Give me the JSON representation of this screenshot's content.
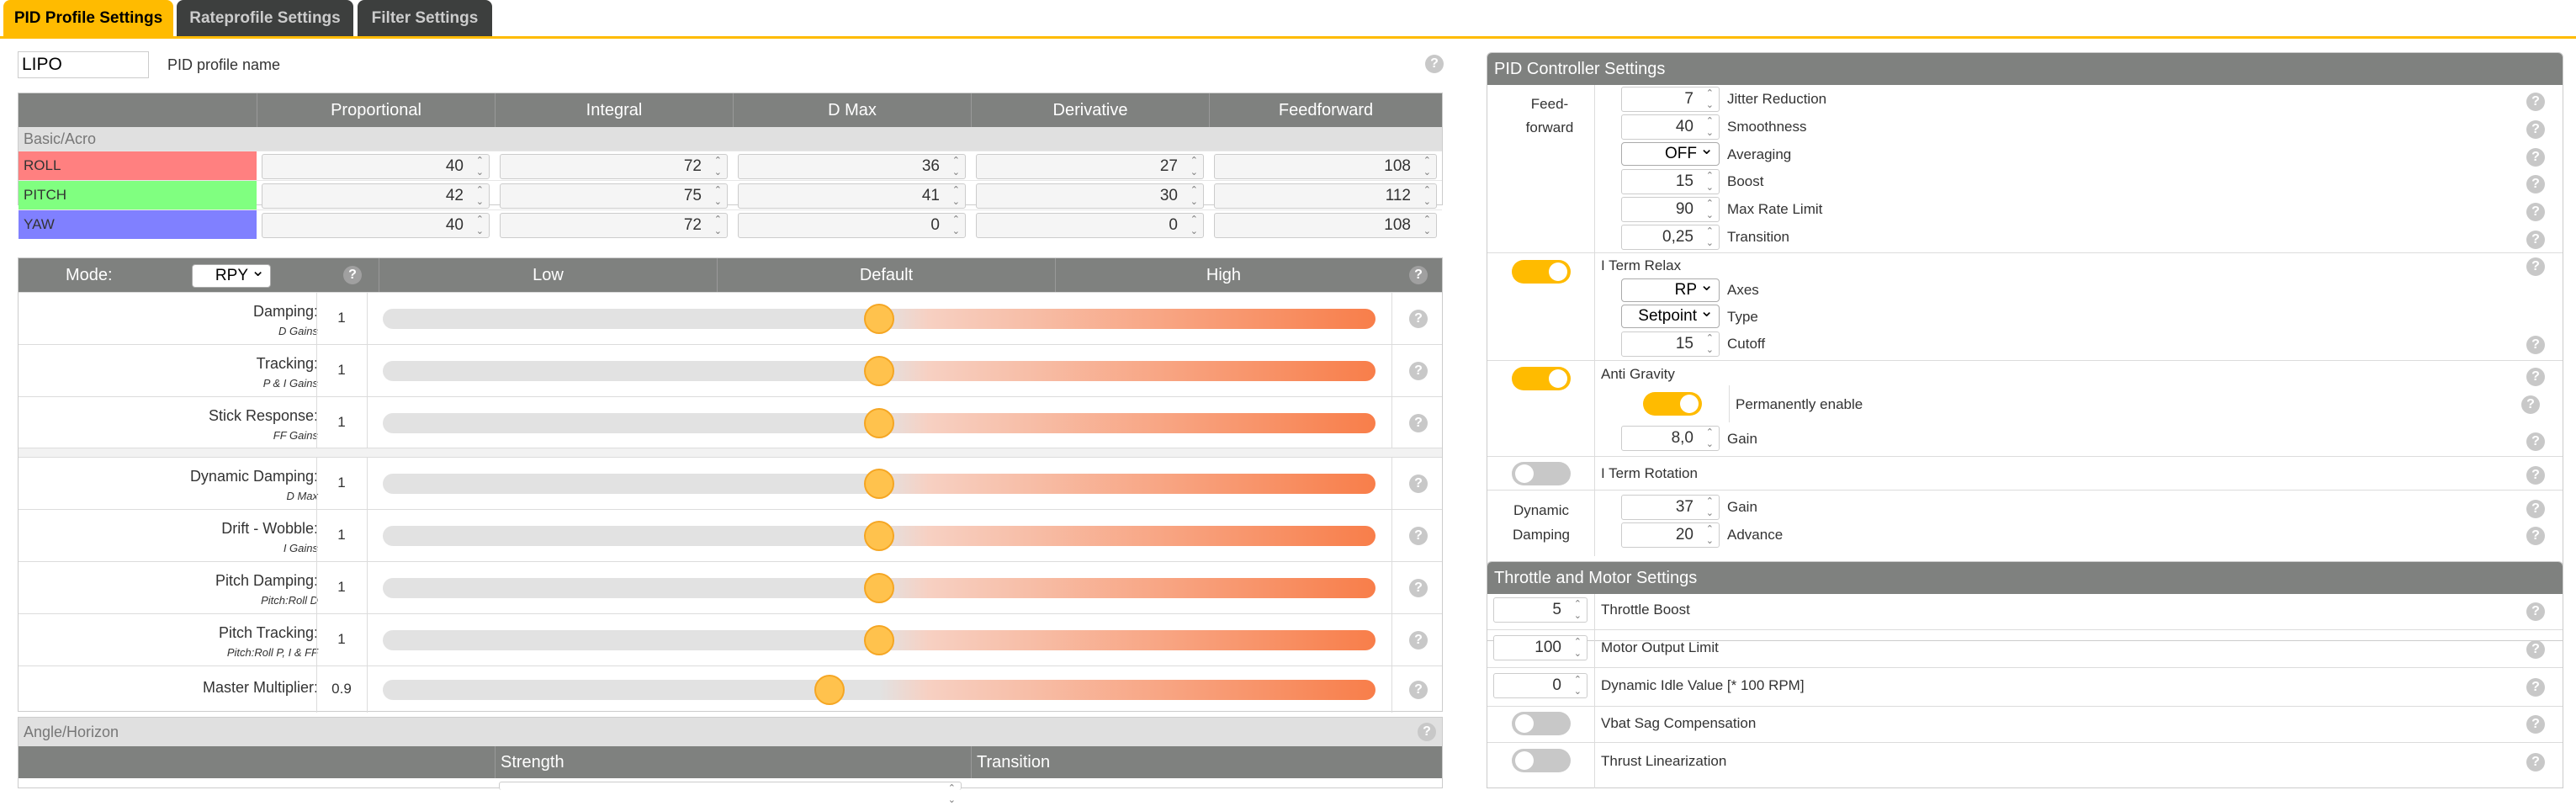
{
  "tabs": [
    "PID Profile Settings",
    "Rateprofile Settings",
    "Filter Settings"
  ],
  "profile": {
    "name_value": "LIPO",
    "name_label": "PID profile name"
  },
  "pid_table": {
    "columns": [
      "Proportional",
      "Integral",
      "D Max",
      "Derivative",
      "Feedforward"
    ],
    "section": "Basic/Acro",
    "rows": [
      {
        "axis": "ROLL",
        "color": "#ff8080",
        "values": [
          "40",
          "72",
          "36",
          "27",
          "108"
        ]
      },
      {
        "axis": "PITCH",
        "color": "#80ff80",
        "values": [
          "42",
          "75",
          "41",
          "30",
          "112"
        ]
      },
      {
        "axis": "YAW",
        "color": "#8080ff",
        "values": [
          "40",
          "72",
          "0",
          "0",
          "108"
        ]
      }
    ]
  },
  "sliders": {
    "mode_label": "Mode:",
    "mode_value": "RPY",
    "scale": [
      "Low",
      "Default",
      "High"
    ],
    "items": [
      {
        "label": "Damping:",
        "sub": "D Gains",
        "value": "1",
        "pos": 0.5
      },
      {
        "label": "Tracking:",
        "sub": "P & I Gains",
        "value": "1",
        "pos": 0.5
      },
      {
        "label": "Stick Response:",
        "sub": "FF Gains",
        "value": "1",
        "pos": 0.5
      },
      {
        "label": "Dynamic Damping:",
        "sub": "D Max",
        "value": "1",
        "pos": 0.5
      },
      {
        "label": "Drift - Wobble:",
        "sub": "I Gains",
        "value": "1",
        "pos": 0.5
      },
      {
        "label": "Pitch Damping:",
        "sub": "Pitch:Roll D",
        "value": "1",
        "pos": 0.5
      },
      {
        "label": "Pitch Tracking:",
        "sub": "Pitch:Roll P, I & FF",
        "value": "1",
        "pos": 0.5
      },
      {
        "label": "Master Multiplier:",
        "sub": "",
        "value": "0.9",
        "pos": 0.45
      }
    ]
  },
  "angle": {
    "section": "Angle/Horizon",
    "columns": [
      "Strength",
      "Transition"
    ]
  },
  "controller": {
    "title": "PID Controller Settings",
    "feedforward_label": "Feed-\nforward",
    "feedforward": [
      {
        "value": "7",
        "label": "Jitter Reduction"
      },
      {
        "value": "40",
        "label": "Smoothness"
      },
      {
        "value": "OFF",
        "label": "Averaging"
      },
      {
        "value": "15",
        "label": "Boost"
      },
      {
        "value": "90",
        "label": "Max Rate Limit"
      },
      {
        "value": "0,25",
        "label": "Transition"
      }
    ],
    "iterm_relax": {
      "label": "I Term Relax",
      "axes_value": "RP",
      "axes_label": "Axes",
      "type_value": "Setpoint",
      "type_label": "Type",
      "cutoff_value": "15",
      "cutoff_label": "Cutoff"
    },
    "anti_gravity": {
      "label": "Anti Gravity",
      "perm_label": "Permanently enable",
      "gain_value": "8,0",
      "gain_label": "Gain"
    },
    "iterm_rotation": {
      "label": "I Term Rotation"
    },
    "dyn_damping": {
      "label": "Dynamic\nDamping",
      "gain_value": "37",
      "gain_label": "Gain",
      "advance_value": "20",
      "advance_label": "Advance"
    }
  },
  "throttle": {
    "title": "Throttle and Motor Settings",
    "items": [
      {
        "value": "5",
        "label": "Throttle Boost"
      },
      {
        "value": "100",
        "label": "Motor Output Limit"
      },
      {
        "value": "0",
        "label": "Dynamic Idle Value [* 100 RPM]"
      }
    ],
    "vbat_label": "Vbat Sag Compensation",
    "thrust_label": "Thrust Linearization"
  },
  "help_glyph": "?"
}
